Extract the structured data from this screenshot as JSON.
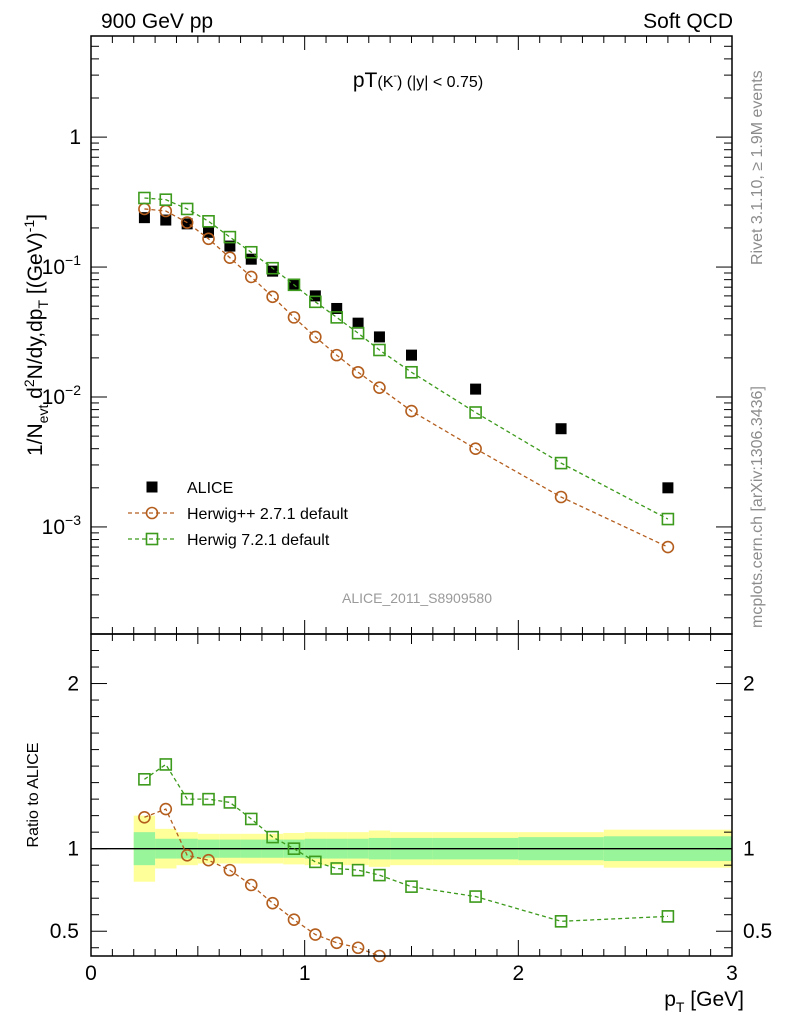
{
  "header": {
    "left": "900 GeV pp",
    "right": "Soft QCD"
  },
  "side_labels": {
    "top": "Rivet 3.1.10, ≥ 1.9M events",
    "bottom": "mcplots.cern.ch [arXiv:1306.3436]"
  },
  "chart_data": [
    {
      "type": "scatter",
      "panel": "main",
      "title": {
        "main": "pT",
        "sub": "(K",
        "sup": "-",
        "tail": ")  (|y| < 0.75)"
      },
      "ylabel": "1/N_evt d²N/dy,dp_T [(GeV)⁻¹]",
      "yscale": "log",
      "ylim": [
        0.00015,
        6
      ],
      "xlim": [
        0,
        3
      ],
      "yticks": [
        {
          "value": 1,
          "base": "1",
          "exp": ""
        },
        {
          "value": 0.1,
          "base": "10",
          "exp": "−1"
        },
        {
          "value": 0.01,
          "base": "10",
          "exp": "−2"
        },
        {
          "value": 0.001,
          "base": "10",
          "exp": "−3"
        }
      ],
      "watermark": "ALICE_2011_S8909580",
      "legend_position": "lower-left",
      "series": [
        {
          "name": "ALICE",
          "marker": "filled-square",
          "color": "#000000",
          "x": [
            0.25,
            0.35,
            0.45,
            0.55,
            0.65,
            0.75,
            0.85,
            0.95,
            1.05,
            1.15,
            1.25,
            1.35,
            1.5,
            1.8,
            2.2,
            2.7
          ],
          "y": [
            0.24,
            0.23,
            0.215,
            0.185,
            0.145,
            0.115,
            0.093,
            0.074,
            0.06,
            0.048,
            0.037,
            0.029,
            0.021,
            0.0115,
            0.0057,
            0.002
          ]
        },
        {
          "name": "Herwig++ 2.7.1 default",
          "marker": "open-circle",
          "color": "#b45e1e",
          "x": [
            0.25,
            0.35,
            0.45,
            0.55,
            0.65,
            0.75,
            0.85,
            0.95,
            1.05,
            1.15,
            1.25,
            1.35,
            1.5,
            1.8,
            2.2,
            2.7
          ],
          "y": [
            0.28,
            0.27,
            0.22,
            0.165,
            0.118,
            0.084,
            0.059,
            0.041,
            0.029,
            0.021,
            0.0155,
            0.0118,
            0.0078,
            0.004,
            0.0017,
            0.0007
          ]
        },
        {
          "name": "Herwig 7.2.1 default",
          "marker": "open-square",
          "color": "#3c9a1c",
          "x": [
            0.25,
            0.35,
            0.45,
            0.55,
            0.65,
            0.75,
            0.85,
            0.95,
            1.05,
            1.15,
            1.25,
            1.35,
            1.5,
            1.8,
            2.2,
            2.7
          ],
          "y": [
            0.34,
            0.33,
            0.28,
            0.225,
            0.17,
            0.13,
            0.098,
            0.073,
            0.054,
            0.041,
            0.031,
            0.023,
            0.0155,
            0.0076,
            0.0031,
            0.00115
          ]
        }
      ]
    },
    {
      "type": "line",
      "panel": "ratio",
      "ylabel": "Ratio to ALICE",
      "xlabel": "p_T [GeV]",
      "xlim": [
        0,
        3
      ],
      "ylim": [
        0.35,
        2.3
      ],
      "xticks": [
        0,
        1,
        2,
        3
      ],
      "yticks": [
        0.5,
        1,
        2
      ],
      "bands": {
        "edges": [
          0.2,
          0.3,
          0.4,
          0.5,
          0.6,
          0.7,
          0.8,
          0.9,
          1.0,
          1.1,
          1.2,
          1.3,
          1.4,
          1.6,
          2.0,
          2.4,
          3.0
        ],
        "stat_color": "#99f599",
        "total_color": "#ffff99",
        "stat_half_width": [
          0.1,
          0.06,
          0.06,
          0.055,
          0.055,
          0.055,
          0.055,
          0.055,
          0.06,
          0.06,
          0.06,
          0.065,
          0.065,
          0.065,
          0.07,
          0.075
        ],
        "total_half_width": [
          0.2,
          0.12,
          0.1,
          0.09,
          0.09,
          0.09,
          0.09,
          0.095,
          0.1,
          0.1,
          0.1,
          0.11,
          0.1,
          0.1,
          0.1,
          0.115
        ]
      },
      "series": [
        {
          "name": "Herwig++ 2.7.1 default",
          "marker": "open-circle",
          "color": "#b45e1e",
          "x": [
            0.25,
            0.35,
            0.45,
            0.55,
            0.65,
            0.75,
            0.85,
            0.95,
            1.05,
            1.15,
            1.25,
            1.35
          ],
          "y": [
            1.19,
            1.24,
            0.96,
            0.93,
            0.87,
            0.78,
            0.67,
            0.57,
            0.48,
            0.43,
            0.4,
            0.35
          ]
        },
        {
          "name": "Herwig 7.2.1 default",
          "marker": "open-square",
          "color": "#3c9a1c",
          "x": [
            0.25,
            0.35,
            0.45,
            0.55,
            0.65,
            0.75,
            0.85,
            0.95,
            1.05,
            1.15,
            1.25,
            1.35,
            1.5,
            1.8,
            2.2,
            2.7
          ],
          "y": [
            1.42,
            1.51,
            1.3,
            1.3,
            1.28,
            1.18,
            1.07,
            1.0,
            0.92,
            0.88,
            0.87,
            0.84,
            0.77,
            0.71,
            0.56,
            0.59
          ]
        }
      ]
    }
  ]
}
